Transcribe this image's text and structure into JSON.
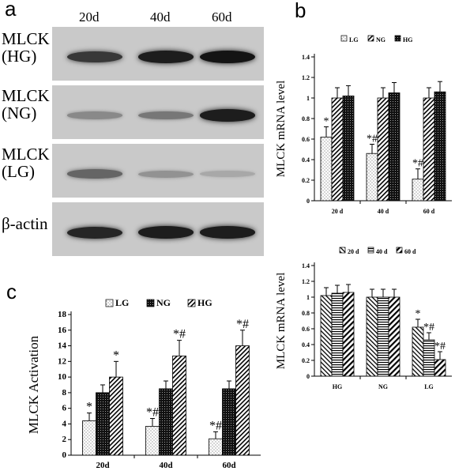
{
  "panel_a": {
    "letter": "a",
    "lanes": [
      "20d",
      "40d",
      "60d"
    ],
    "blots": [
      {
        "label": "MLCK\n(HG)",
        "intensities": [
          0.8,
          0.95,
          1.0
        ]
      },
      {
        "label": "MLCK\n(NG)",
        "intensities": [
          0.35,
          0.45,
          0.95
        ]
      },
      {
        "label": "MLCK\n(LG)",
        "intensities": [
          0.55,
          0.3,
          0.18
        ]
      },
      {
        "label": "β-actin",
        "intensities": [
          0.9,
          0.95,
          0.95
        ]
      }
    ]
  },
  "panel_b": {
    "letter": "b"
  },
  "panel_c": {
    "letter": "c"
  },
  "colors": {
    "blot_bg": "#c9c9c9",
    "band": "#1a1a1a",
    "bar_edge": "#000000"
  },
  "chart_data": [
    {
      "id": "b_top",
      "type": "bar",
      "xlabel": "",
      "ylabel": "MLCK mRNA level",
      "ylim": [
        0,
        1.4
      ],
      "yticks": [
        "0",
        "0.2",
        "0.4",
        "0.6",
        "0.8",
        "1",
        "1.2",
        "1.4"
      ],
      "categories": [
        "20 d",
        "40 d",
        "60 d"
      ],
      "legend_position": "top",
      "series": [
        {
          "name": "LG",
          "pattern": "dots",
          "values": [
            0.62,
            0.46,
            0.21
          ],
          "errors": [
            0.1,
            0.09,
            0.1
          ],
          "annotations": [
            "*",
            "*#",
            "*#"
          ]
        },
        {
          "name": "NG",
          "pattern": "diag",
          "values": [
            1.0,
            1.0,
            1.0
          ],
          "errors": [
            0.1,
            0.1,
            0.1
          ],
          "annotations": [
            "",
            "",
            ""
          ]
        },
        {
          "name": "HG",
          "pattern": "dark",
          "values": [
            1.02,
            1.05,
            1.06
          ],
          "errors": [
            0.1,
            0.1,
            0.1
          ],
          "annotations": [
            "",
            "",
            ""
          ]
        }
      ]
    },
    {
      "id": "b_bottom",
      "type": "bar",
      "xlabel": "",
      "ylabel": "MLCK mRNA level",
      "ylim": [
        0,
        1.4
      ],
      "yticks": [
        "0",
        "0.2",
        "0.4",
        "0.6",
        "0.8",
        "1",
        "1.2",
        "1.4"
      ],
      "categories": [
        "HG",
        "NG",
        "LG"
      ],
      "legend_position": "top",
      "series": [
        {
          "name": "20 d",
          "pattern": "diag2",
          "values": [
            1.02,
            1.0,
            0.62
          ],
          "errors": [
            0.1,
            0.1,
            0.1
          ],
          "annotations": [
            "",
            "",
            "*"
          ]
        },
        {
          "name": "40 d",
          "pattern": "hlines",
          "values": [
            1.05,
            1.0,
            0.46
          ],
          "errors": [
            0.1,
            0.1,
            0.09
          ],
          "annotations": [
            "",
            "",
            "*#"
          ]
        },
        {
          "name": "60 d",
          "pattern": "diag3",
          "values": [
            1.06,
            1.0,
            0.21
          ],
          "errors": [
            0.1,
            0.1,
            0.1
          ],
          "annotations": [
            "",
            "",
            "*#"
          ]
        }
      ]
    },
    {
      "id": "c",
      "type": "bar",
      "xlabel": "",
      "ylabel": "MLCK Activation",
      "ylim": [
        0,
        18
      ],
      "yticks": [
        "0",
        "2",
        "4",
        "6",
        "8",
        "10",
        "12",
        "14",
        "16",
        "18"
      ],
      "categories": [
        "20d",
        "40d",
        "60d"
      ],
      "legend_position": "top",
      "series": [
        {
          "name": "LG",
          "pattern": "dots",
          "values": [
            4.4,
            3.7,
            2.1
          ],
          "errors": [
            1.0,
            1.0,
            0.9
          ],
          "annotations": [
            "*",
            "*#",
            "*#"
          ]
        },
        {
          "name": "NG",
          "pattern": "dark",
          "values": [
            8.0,
            8.5,
            8.5
          ],
          "errors": [
            1.0,
            1.0,
            1.0
          ],
          "annotations": [
            "",
            "",
            ""
          ]
        },
        {
          "name": "HG",
          "pattern": "diag",
          "values": [
            10.0,
            12.7,
            14.0
          ],
          "errors": [
            2.0,
            2.0,
            2.0
          ],
          "annotations": [
            "*",
            "*#",
            "*#"
          ]
        }
      ]
    }
  ]
}
